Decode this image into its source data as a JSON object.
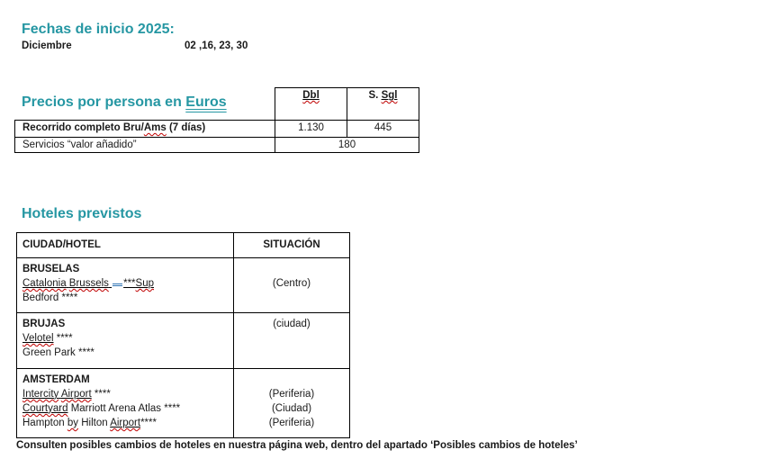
{
  "page": {
    "accent_color": "#2697A3",
    "spellcheck_color": "#C00000",
    "grammar_color": "#2E74B5"
  },
  "fechas": {
    "title": "Fechas de inicio 2025:",
    "month": "Diciembre",
    "dates": "02 ,16, 23, 30"
  },
  "precios": {
    "title_prefix": "Precios por persona en ",
    "title_underlined": "Euros",
    "header": {
      "dbl": [
        {
          "t": "Dbl",
          "b": 1,
          "u": 1,
          "w": 1
        }
      ],
      "sgl": [
        {
          "t": "S. ",
          "b": 1
        },
        {
          "t": "Sgl",
          "b": 1,
          "u": 1,
          "w": 1
        }
      ]
    },
    "rows": [
      {
        "label": [
          {
            "t": "Recorrido completo Bru/",
            "b": 1
          },
          {
            "t": "Ams",
            "b": 1,
            "w": 1
          },
          {
            "t": " (7 días)",
            "b": 1
          }
        ],
        "dbl": "1.130",
        "sgl": "445"
      },
      {
        "label": "Servicios “valor añadido”",
        "value": "180"
      }
    ]
  },
  "hoteles": {
    "title": "Hoteles previstos",
    "headers": {
      "hotel": "CIUDAD/HOTEL",
      "situacion": "SITUACIÓN"
    },
    "rows": [
      {
        "lines": [
          [
            {
              "t": "BRUSELAS",
              "b": 1
            }
          ],
          [
            {
              "t": "Catalonia",
              "u": 1,
              "w": 1
            },
            {
              "t": " ",
              "u": 1
            },
            {
              "t": "Brussels",
              "u": 1,
              "w": 1
            },
            {
              "t": " ",
              "u": 1
            },
            {
              "mark": 1
            },
            {
              "t": "***",
              "u": 1
            },
            {
              "t": "Sup",
              "u": 1,
              "w": 1
            }
          ],
          [
            {
              "t": "Bedford ****"
            }
          ]
        ],
        "situations": [
          "",
          "(Centro)",
          ""
        ]
      },
      {
        "lines": [
          [
            {
              "t": "BRUJAS",
              "b": 1
            }
          ],
          [
            {
              "t": "Velotel",
              "u": 1,
              "w": 1
            },
            {
              "t": " ****"
            }
          ],
          [
            {
              "t": "Green Park ****"
            }
          ]
        ],
        "situations": [
          "(ciudad)",
          "",
          ""
        ]
      },
      {
        "lines": [
          [
            {
              "t": "AMSTERDAM",
              "b": 1
            }
          ],
          [
            {
              "t": "Intercity",
              "u": 1,
              "w": 1
            },
            {
              "t": " ",
              "u": 1
            },
            {
              "t": "Airport",
              "u": 1,
              "w": 1
            },
            {
              "t": " ****"
            }
          ],
          [
            {
              "t": "Courtyard",
              "u": 1,
              "w": 1
            },
            {
              "t": " Marriott Arena Atlas ****"
            }
          ],
          [
            {
              "t": "Hampton "
            },
            {
              "t": "by",
              "w": 1
            },
            {
              "t": " Hilton "
            },
            {
              "t": "Airport",
              "u": 1,
              "w": 1
            },
            {
              "t": "****"
            }
          ]
        ],
        "situations": [
          "",
          "(Periferia)",
          "(Ciudad)",
          "(Periferia)"
        ]
      }
    ]
  },
  "note": "Consulten posibles cambios de hoteles en nuestra página web, dentro del apartado ‘Posibles cambios de hoteles’"
}
